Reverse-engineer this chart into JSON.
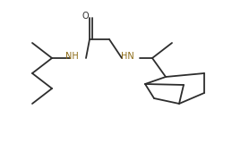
{
  "bg_color": "#ffffff",
  "bond_color": "#2d2d2d",
  "atom_color_N": "#8B6914",
  "atom_color_O": "#2d2d2d",
  "bond_lw": 1.3,
  "font_size_atom": 7.0,
  "figw": 2.59,
  "figh": 1.6,
  "dpi": 100,
  "xlim": [
    0,
    259
  ],
  "ylim": [
    0,
    160
  ]
}
